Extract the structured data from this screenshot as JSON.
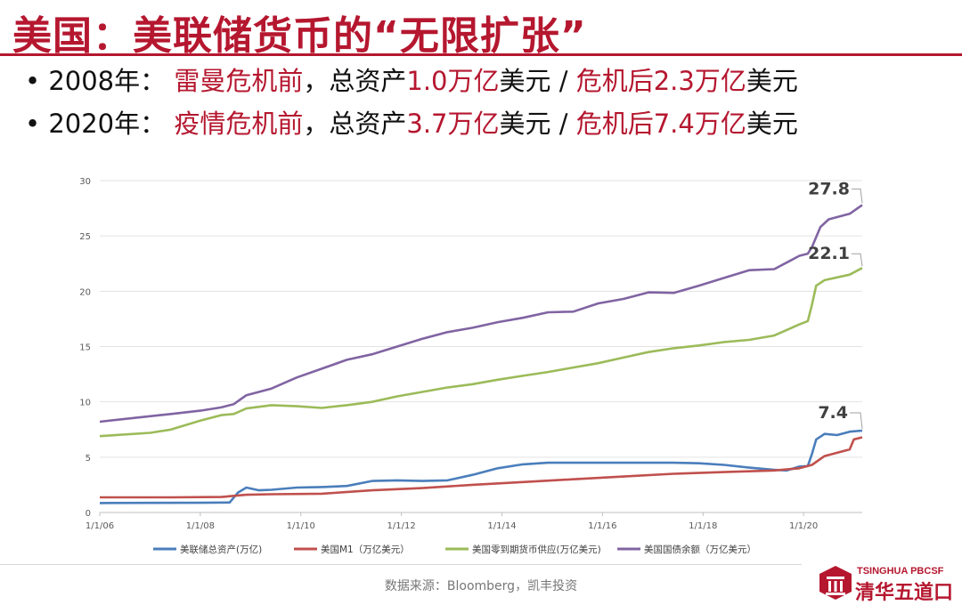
{
  "slide": {
    "title": "美国：美联储货币的“无限扩张”",
    "bullets": [
      {
        "prefix": "•",
        "year": "2008年：",
        "pre_label": "雷曼危机前",
        "mid": "，总资产",
        "pre_value": "1.0万亿",
        "unit1": "美元 / ",
        "post_label": "危机后2.3万亿",
        "unit2": "美元"
      },
      {
        "prefix": "•",
        "year": "2020年：",
        "pre_label": "疫情危机前",
        "mid": "，总资产",
        "pre_value": "3.7万亿",
        "unit1": "美元 / ",
        "post_label": "危机后7.4万亿",
        "unit2": "美元"
      }
    ],
    "source": "数据来源：Bloomberg，凯丰投资",
    "logo_top": "TSINGHUA PBCSF",
    "logo_bottom": "清华五道口"
  },
  "chart_data": {
    "type": "line",
    "x_ticks": [
      "1/1/06",
      "1/1/08",
      "1/1/10",
      "1/1/12",
      "1/1/14",
      "1/1/16",
      "1/1/18",
      "1/1/20"
    ],
    "xlim": [
      "2006-01",
      "2021-03"
    ],
    "ylim": [
      0,
      30
    ],
    "y_ticks": [
      "0",
      "5",
      "10",
      "15",
      "20",
      "25",
      "30"
    ],
    "grid": true,
    "legend_position": "bottom",
    "series": [
      {
        "name": "美联储总资产(万亿)",
        "color": "#4a7ebb",
        "points": [
          [
            "2006-01",
            0.85
          ],
          [
            "2007-01",
            0.87
          ],
          [
            "2008-01",
            0.88
          ],
          [
            "2008-08",
            0.9
          ],
          [
            "2008-10",
            1.8
          ],
          [
            "2008-12",
            2.25
          ],
          [
            "2009-03",
            2.0
          ],
          [
            "2009-06",
            2.05
          ],
          [
            "2009-12",
            2.25
          ],
          [
            "2010-06",
            2.3
          ],
          [
            "2010-12",
            2.4
          ],
          [
            "2011-06",
            2.85
          ],
          [
            "2011-12",
            2.9
          ],
          [
            "2012-06",
            2.85
          ],
          [
            "2012-12",
            2.9
          ],
          [
            "2013-06",
            3.4
          ],
          [
            "2013-12",
            4.0
          ],
          [
            "2014-06",
            4.35
          ],
          [
            "2014-12",
            4.5
          ],
          [
            "2015-06",
            4.5
          ],
          [
            "2016-06",
            4.5
          ],
          [
            "2017-06",
            4.5
          ],
          [
            "2017-12",
            4.45
          ],
          [
            "2018-06",
            4.3
          ],
          [
            "2018-12",
            4.05
          ],
          [
            "2019-06",
            3.85
          ],
          [
            "2019-09",
            3.8
          ],
          [
            "2019-12",
            4.15
          ],
          [
            "2020-02",
            4.2
          ],
          [
            "2020-03",
            5.3
          ],
          [
            "2020-04",
            6.6
          ],
          [
            "2020-06",
            7.1
          ],
          [
            "2020-09",
            7.0
          ],
          [
            "2020-12",
            7.3
          ],
          [
            "2021-03",
            7.4
          ]
        ]
      },
      {
        "name": "美国M1（万亿美元）",
        "color": "#c0504d",
        "points": [
          [
            "2006-01",
            1.37
          ],
          [
            "2007-06",
            1.37
          ],
          [
            "2008-06",
            1.4
          ],
          [
            "2008-12",
            1.6
          ],
          [
            "2009-06",
            1.65
          ],
          [
            "2010-06",
            1.7
          ],
          [
            "2011-06",
            2.0
          ],
          [
            "2012-06",
            2.2
          ],
          [
            "2013-06",
            2.5
          ],
          [
            "2014-06",
            2.75
          ],
          [
            "2015-06",
            3.0
          ],
          [
            "2016-06",
            3.25
          ],
          [
            "2017-06",
            3.5
          ],
          [
            "2018-06",
            3.65
          ],
          [
            "2019-06",
            3.8
          ],
          [
            "2019-12",
            4.0
          ],
          [
            "2020-03",
            4.3
          ],
          [
            "2020-06",
            5.1
          ],
          [
            "2020-09",
            5.4
          ],
          [
            "2020-12",
            5.7
          ],
          [
            "2021-01",
            6.6
          ],
          [
            "2021-03",
            6.8
          ]
        ]
      },
      {
        "name": "美国零到期货币供应(万亿美元)",
        "color": "#9bbb59",
        "points": [
          [
            "2006-01",
            6.9
          ],
          [
            "2007-01",
            7.2
          ],
          [
            "2007-06",
            7.5
          ],
          [
            "2008-01",
            8.3
          ],
          [
            "2008-06",
            8.8
          ],
          [
            "2008-09",
            8.9
          ],
          [
            "2008-12",
            9.4
          ],
          [
            "2009-06",
            9.7
          ],
          [
            "2009-12",
            9.6
          ],
          [
            "2010-06",
            9.45
          ],
          [
            "2010-12",
            9.7
          ],
          [
            "2011-06",
            10.0
          ],
          [
            "2011-12",
            10.5
          ],
          [
            "2012-06",
            10.9
          ],
          [
            "2012-12",
            11.3
          ],
          [
            "2013-06",
            11.6
          ],
          [
            "2013-12",
            12.0
          ],
          [
            "2014-06",
            12.35
          ],
          [
            "2014-12",
            12.7
          ],
          [
            "2015-06",
            13.1
          ],
          [
            "2015-12",
            13.5
          ],
          [
            "2016-06",
            14.0
          ],
          [
            "2016-12",
            14.5
          ],
          [
            "2017-06",
            14.85
          ],
          [
            "2017-12",
            15.1
          ],
          [
            "2018-06",
            15.4
          ],
          [
            "2018-12",
            15.6
          ],
          [
            "2019-06",
            16.0
          ],
          [
            "2019-12",
            17.0
          ],
          [
            "2020-02",
            17.3
          ],
          [
            "2020-03",
            18.8
          ],
          [
            "2020-04",
            20.5
          ],
          [
            "2020-06",
            21.0
          ],
          [
            "2020-12",
            21.5
          ],
          [
            "2021-03",
            22.1
          ]
        ]
      },
      {
        "name": "美国国债余额（万亿美元）",
        "color": "#8064a2",
        "points": [
          [
            "2006-01",
            8.2
          ],
          [
            "2007-01",
            8.7
          ],
          [
            "2007-06",
            8.9
          ],
          [
            "2008-01",
            9.2
          ],
          [
            "2008-06",
            9.5
          ],
          [
            "2008-09",
            9.8
          ],
          [
            "2008-12",
            10.6
          ],
          [
            "2009-06",
            11.2
          ],
          [
            "2009-12",
            12.2
          ],
          [
            "2010-06",
            13.0
          ],
          [
            "2010-12",
            13.8
          ],
          [
            "2011-06",
            14.3
          ],
          [
            "2011-12",
            15.0
          ],
          [
            "2012-06",
            15.7
          ],
          [
            "2012-12",
            16.3
          ],
          [
            "2013-06",
            16.7
          ],
          [
            "2013-12",
            17.2
          ],
          [
            "2014-06",
            17.6
          ],
          [
            "2014-12",
            18.1
          ],
          [
            "2015-06",
            18.15
          ],
          [
            "2015-12",
            18.9
          ],
          [
            "2016-06",
            19.3
          ],
          [
            "2016-12",
            19.9
          ],
          [
            "2017-06",
            19.85
          ],
          [
            "2017-12",
            20.5
          ],
          [
            "2018-06",
            21.2
          ],
          [
            "2018-12",
            21.9
          ],
          [
            "2019-06",
            22.0
          ],
          [
            "2019-12",
            23.2
          ],
          [
            "2020-02",
            23.4
          ],
          [
            "2020-03",
            24.0
          ],
          [
            "2020-05",
            25.8
          ],
          [
            "2020-07",
            26.5
          ],
          [
            "2020-12",
            27.0
          ],
          [
            "2021-03",
            27.8
          ]
        ]
      }
    ],
    "annotations": [
      {
        "text": "27.8",
        "series": "美国国债余额（万亿美元）",
        "x": "2021-03",
        "y": 27.8
      },
      {
        "text": "22.1",
        "series": "美国零到期货币供应(万亿美元)",
        "x": "2021-03",
        "y": 22.1
      },
      {
        "text": "7.4",
        "series": "美联储总资产(万亿)",
        "x": "2021-03",
        "y": 7.4
      }
    ]
  }
}
